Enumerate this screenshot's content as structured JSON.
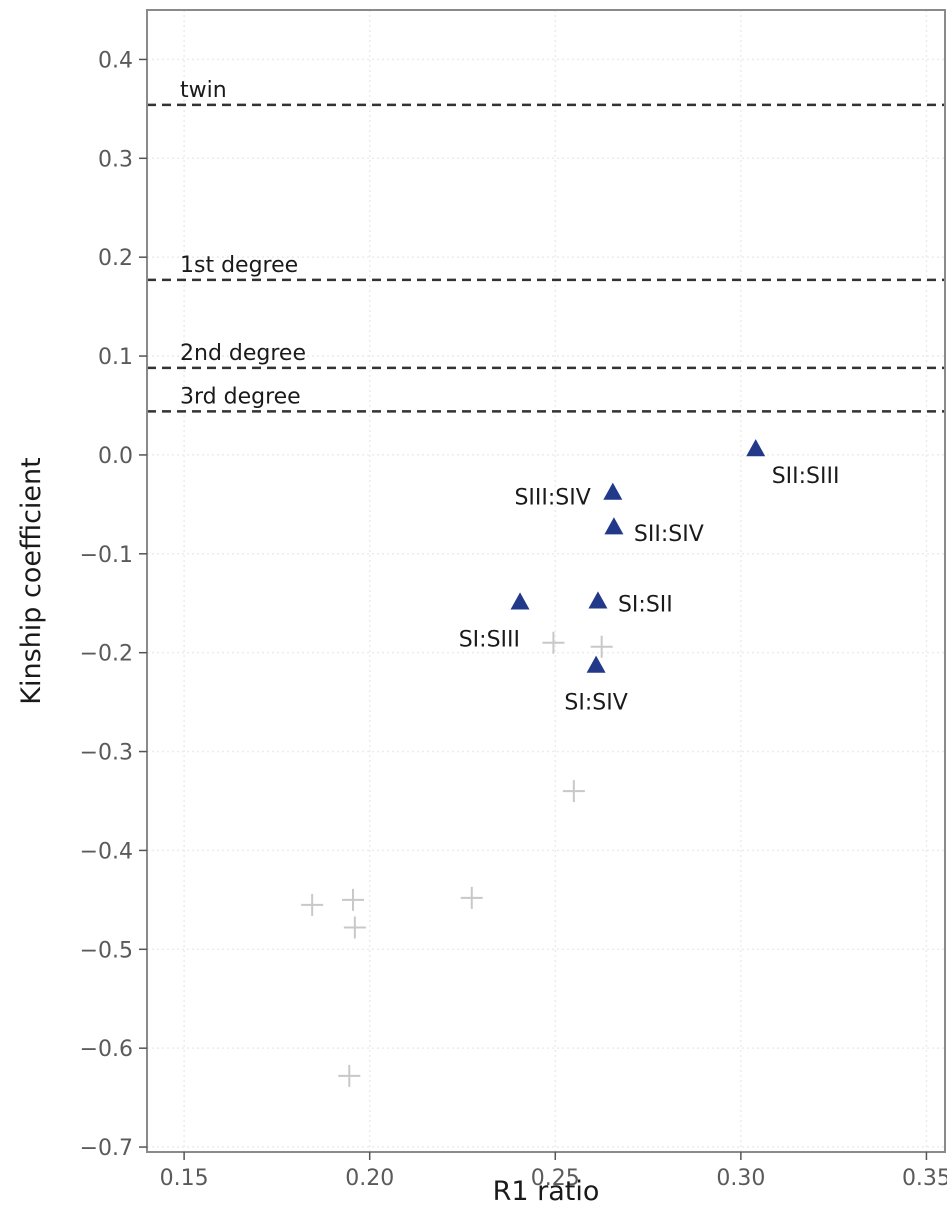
{
  "chart_data": {
    "type": "scatter",
    "title": "",
    "xlabel": "R1 ratio",
    "ylabel": "Kinship coefficient",
    "xlim": [
      0.14,
      0.355
    ],
    "ylim": [
      -0.705,
      0.45
    ],
    "xticks": [
      0.15,
      0.2,
      0.25,
      0.3,
      0.35
    ],
    "xtick_labels": [
      "0.15",
      "0.20",
      "0.25",
      "0.30",
      "0.35"
    ],
    "yticks": [
      0.4,
      0.3,
      0.2,
      0.1,
      0.0,
      -0.1,
      -0.2,
      -0.3,
      -0.4,
      -0.5,
      -0.6,
      -0.7
    ],
    "ytick_labels": [
      "0.4",
      "0.3",
      "0.2",
      "0.1",
      "0.0",
      "−0.1",
      "−0.2",
      "−0.3",
      "−0.4",
      "−0.5",
      "−0.6",
      "−0.7"
    ],
    "grid": true,
    "legend": "none",
    "colors": {
      "highlight": "#22398a",
      "background_points": "#c8c8c8",
      "reference_lines": "#333333"
    },
    "reference_lines": [
      {
        "label": "twin",
        "y": 0.354
      },
      {
        "label": "1st degree",
        "y": 0.177
      },
      {
        "label": "2nd degree",
        "y": 0.088
      },
      {
        "label": "3rd degree",
        "y": 0.044
      }
    ],
    "series": [
      {
        "marker": "triangle",
        "points": [
          {
            "label": "SII:SIII",
            "x": 0.304,
            "y": 0.006
          },
          {
            "label": "SIII:SIV",
            "x": 0.2655,
            "y": -0.038
          },
          {
            "label": "SII:SIV",
            "x": 0.2658,
            "y": -0.073
          },
          {
            "label": "SI:SII",
            "x": 0.2615,
            "y": -0.148
          },
          {
            "label": "SI:SIII",
            "x": 0.2405,
            "y": -0.149
          },
          {
            "label": "SI:SIV",
            "x": 0.261,
            "y": -0.213
          }
        ]
      },
      {
        "marker": "cross",
        "points": [
          {
            "x": 0.2495,
            "y": -0.19
          },
          {
            "x": 0.2625,
            "y": -0.194
          },
          {
            "x": 0.255,
            "y": -0.34
          },
          {
            "x": 0.1845,
            "y": -0.455
          },
          {
            "x": 0.1955,
            "y": -0.45
          },
          {
            "x": 0.196,
            "y": -0.478
          },
          {
            "x": 0.2275,
            "y": -0.448
          },
          {
            "x": 0.1945,
            "y": -0.628
          }
        ]
      }
    ]
  }
}
